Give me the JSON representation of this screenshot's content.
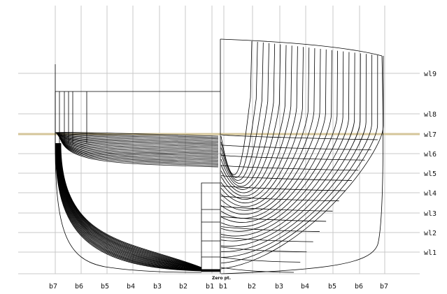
{
  "waterlines": [
    "wl1",
    "wl2",
    "wl3",
    "wl4",
    "wl5",
    "wl6",
    "wl7",
    "wl8",
    "wl9"
  ],
  "buttock_labels_left": [
    "b7",
    "b6",
    "b5",
    "b4",
    "b3",
    "b2",
    "b1"
  ],
  "buttock_labels_right": [
    "b1",
    "b2",
    "b3",
    "b4",
    "b5",
    "b6",
    "b7"
  ],
  "zero_label": "Zero pt.",
  "colors": {
    "grid": "#c8c8c8",
    "highlight_waterline": "#d4c69a",
    "lines": "#000000"
  },
  "highlighted_waterline": "wl7"
}
